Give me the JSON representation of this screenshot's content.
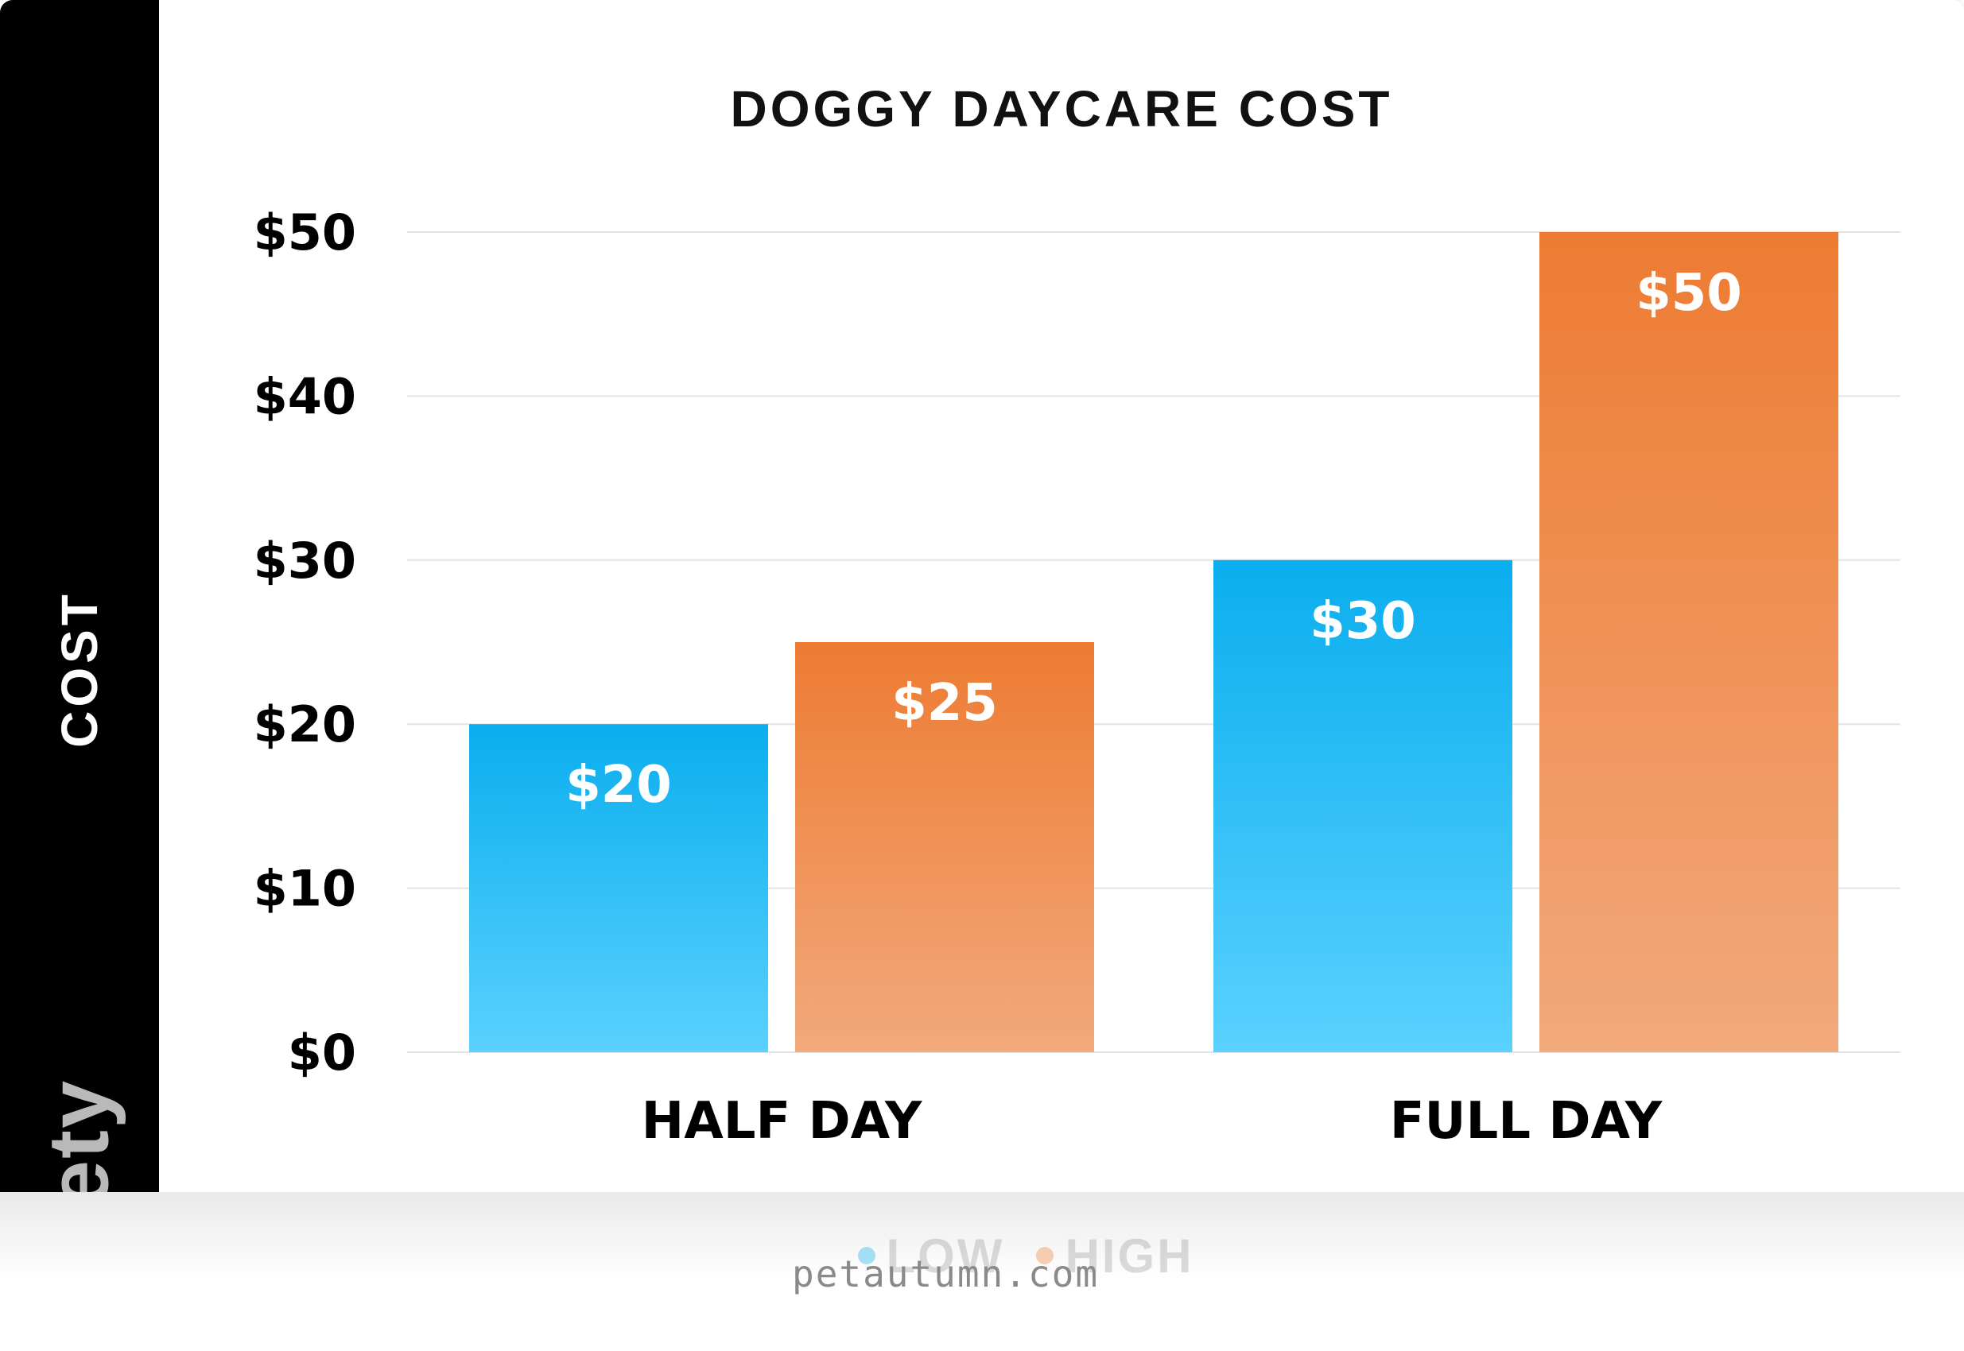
{
  "chart_data": {
    "type": "bar",
    "title": "DOGGY DAYCARE COST",
    "xlabel": "",
    "ylabel": "COST",
    "categories": [
      "HALF DAY",
      "FULL DAY"
    ],
    "series": [
      {
        "name": "LOW",
        "values": [
          20,
          30
        ],
        "color_top": "#0aaeee",
        "color_bottom": "#5ad1ff"
      },
      {
        "name": "HIGH",
        "values": [
          25,
          50
        ],
        "color_top": "#ed7b32",
        "color_bottom": "#f2a97c"
      }
    ],
    "data_labels": [
      [
        "$20",
        "$30"
      ],
      [
        "$25",
        "$50"
      ]
    ],
    "ylim": [
      0,
      50
    ],
    "yticks": [
      0,
      10,
      20,
      30,
      40,
      50
    ],
    "ytick_labels": [
      "$0",
      "$10",
      "$20",
      "$30",
      "$40",
      "$50"
    ],
    "grid": true,
    "legend_position": "bottom-center"
  },
  "branding": {
    "side_logo": "vety",
    "watermark": "petautumn.com"
  },
  "colors": {
    "left_band": "#000000",
    "gridline": "#e3e3e3",
    "axis_text": "#000000",
    "data_label": "#ffffff"
  }
}
